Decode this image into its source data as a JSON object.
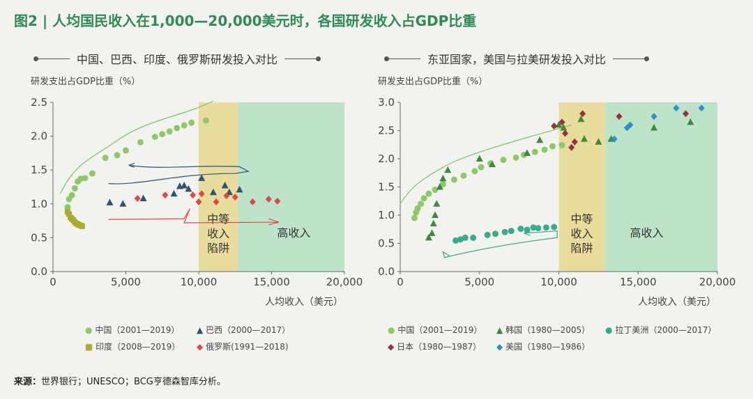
{
  "title": "图2 | 人均国民收入在1,000—20,000美元时，各国研发收入占GDP比重",
  "source": {
    "label": "来源：",
    "text": "世界银行；UNESCO；BCG亨德森智库分析。"
  },
  "colors": {
    "china": "#8cc96a",
    "brazil": "#2c5574",
    "india": "#a9ac2c",
    "russia": "#e04848",
    "korea": "#3e8a3a",
    "japan": "#9b2d47",
    "usa": "#2f8fcc",
    "latam": "#3aaa8c",
    "trap": "#e8dd9c",
    "high": "#bde3c9",
    "title": "#2e8b57"
  },
  "chart_data": [
    {
      "type": "scatter",
      "title": "中国、巴西、印度、俄罗斯研发投入对比",
      "ylabel": "研发支出占GDP比重（%）",
      "xlabel": "人均收入（美元）",
      "xlim": [
        0,
        20000
      ],
      "ylim": [
        0,
        2.5
      ],
      "xticks": [
        "0",
        "5,000",
        "10,000",
        "15,000",
        "20,000"
      ],
      "yticks": [
        "0.0",
        "0.5",
        "1.0",
        "1.5",
        "2.0",
        "2.5"
      ],
      "regions": [
        {
          "name": "trap",
          "x0": 10000,
          "x1": 12700,
          "label": [
            "中等",
            "收入",
            "陷阱"
          ]
        },
        {
          "name": "high",
          "x0": 12700,
          "x1": 20000,
          "label": [
            "高收入"
          ]
        }
      ],
      "series": [
        {
          "name": "中国（2001—2019）",
          "marker": "circle",
          "color_key": "china",
          "points": [
            [
              1000,
              0.95
            ],
            [
              1100,
              1.07
            ],
            [
              1300,
              1.13
            ],
            [
              1500,
              1.23
            ],
            [
              1700,
              1.33
            ],
            [
              1900,
              1.37
            ],
            [
              2200,
              1.38
            ],
            [
              2700,
              1.45
            ],
            [
              3600,
              1.68
            ],
            [
              4400,
              1.72
            ],
            [
              5000,
              1.79
            ],
            [
              6000,
              1.91
            ],
            [
              7000,
              1.99
            ],
            [
              7500,
              2.03
            ],
            [
              8000,
              2.07
            ],
            [
              8500,
              2.12
            ],
            [
              9000,
              2.16
            ],
            [
              9500,
              2.2
            ],
            [
              10500,
              2.23
            ]
          ]
        },
        {
          "name": "巴西（2000—2017）",
          "marker": "triangle",
          "color_key": "brazil",
          "points": [
            [
              3900,
              1.02
            ],
            [
              4800,
              1.0
            ],
            [
              6200,
              1.08
            ],
            [
              8300,
              1.15
            ],
            [
              8700,
              1.26
            ],
            [
              9000,
              1.27
            ],
            [
              9300,
              1.22
            ],
            [
              10200,
              1.38
            ],
            [
              11000,
              1.17
            ],
            [
              11800,
              1.27
            ],
            [
              12100,
              1.17
            ],
            [
              12800,
              1.21
            ]
          ]
        },
        {
          "name": "印度（2008—2019）",
          "marker": "square",
          "color_key": "india",
          "points": [
            [
              1000,
              0.88
            ],
            [
              1100,
              0.85
            ],
            [
              1200,
              0.8
            ],
            [
              1300,
              0.78
            ],
            [
              1400,
              0.76
            ],
            [
              1500,
              0.73
            ],
            [
              1600,
              0.71
            ],
            [
              1700,
              0.7
            ],
            [
              1800,
              0.69
            ],
            [
              1900,
              0.68
            ],
            [
              2000,
              0.67
            ]
          ]
        },
        {
          "name": "俄罗斯(1991—2018)",
          "marker": "diamond",
          "color_key": "russia",
          "points": [
            [
              5800,
              1.08
            ],
            [
              7700,
              1.13
            ],
            [
              9600,
              1.13
            ],
            [
              10200,
              1.15
            ],
            [
              10000,
              1.03
            ],
            [
              11200,
              1.03
            ],
            [
              11900,
              1.12
            ],
            [
              12500,
              1.1
            ],
            [
              13700,
              1.03
            ],
            [
              14800,
              1.07
            ],
            [
              15400,
              1.04
            ]
          ]
        }
      ],
      "legend": [
        "中国（2001—2019）",
        "巴西（2000—2017）",
        "印度（2008—2019）",
        "俄罗斯(1991—2018)"
      ]
    },
    {
      "type": "scatter",
      "title": "东亚国家，美国与拉美研发投入对比",
      "ylabel": "研发支出占GDP比重（%）",
      "xlabel": "人均收入（美元）",
      "xlim": [
        0,
        20000
      ],
      "ylim": [
        0,
        3.0
      ],
      "xticks": [
        "0",
        "5,000",
        "10,000",
        "15,000",
        "20,000"
      ],
      "yticks": [
        "0.0",
        "0.5",
        "1.0",
        "1.5",
        "2.0",
        "2.5",
        "3.0"
      ],
      "regions": [
        {
          "name": "trap",
          "x0": 10000,
          "x1": 12900,
          "label": [
            "中等",
            "收入",
            "陷阱"
          ]
        },
        {
          "name": "high",
          "x0": 12900,
          "x1": 20000,
          "label": [
            "高收入"
          ]
        }
      ],
      "series": [
        {
          "name": "中国（2001—2019）",
          "marker": "circle",
          "color_key": "china",
          "points": [
            [
              900,
              0.95
            ],
            [
              1000,
              1.05
            ],
            [
              1100,
              1.12
            ],
            [
              1300,
              1.2
            ],
            [
              1500,
              1.3
            ],
            [
              1800,
              1.38
            ],
            [
              2200,
              1.45
            ],
            [
              2700,
              1.55
            ],
            [
              3400,
              1.63
            ],
            [
              4000,
              1.7
            ],
            [
              4700,
              1.78
            ],
            [
              5100,
              1.85
            ],
            [
              5700,
              1.92
            ],
            [
              6500,
              1.98
            ],
            [
              7300,
              2.02
            ],
            [
              7800,
              2.07
            ],
            [
              8500,
              2.12
            ],
            [
              9100,
              2.16
            ],
            [
              9600,
              2.22
            ],
            [
              10200,
              2.24
            ]
          ]
        },
        {
          "name": "韩国（1980—2005）",
          "marker": "triangle",
          "color_key": "korea",
          "points": [
            [
              1800,
              0.6
            ],
            [
              2000,
              0.68
            ],
            [
              2100,
              0.85
            ],
            [
              2200,
              1.0
            ],
            [
              2300,
              1.2
            ],
            [
              2500,
              1.5
            ],
            [
              2700,
              1.65
            ],
            [
              3000,
              1.8
            ],
            [
              5000,
              2.0
            ],
            [
              5800,
              1.9
            ],
            [
              8000,
              2.1
            ],
            [
              8800,
              2.33
            ],
            [
              10000,
              2.6
            ],
            [
              10300,
              2.55
            ],
            [
              11400,
              2.7
            ],
            [
              11600,
              2.35
            ],
            [
              12500,
              2.3
            ],
            [
              13300,
              2.35
            ],
            [
              16000,
              2.55
            ],
            [
              18300,
              2.65
            ]
          ]
        },
        {
          "name": "拉丁美洲（2000—2017）",
          "marker": "circle",
          "color_key": "latam",
          "points": [
            [
              3500,
              0.55
            ],
            [
              3800,
              0.57
            ],
            [
              4100,
              0.6
            ],
            [
              4600,
              0.6
            ],
            [
              5500,
              0.65
            ],
            [
              6000,
              0.67
            ],
            [
              6600,
              0.7
            ],
            [
              7000,
              0.72
            ],
            [
              7600,
              0.76
            ],
            [
              8000,
              0.74
            ],
            [
              8400,
              0.78
            ],
            [
              8700,
              0.77
            ],
            [
              9200,
              0.78
            ],
            [
              9700,
              0.79
            ]
          ]
        },
        {
          "name": "日本（1980—1987）",
          "marker": "diamond",
          "color_key": "japan",
          "points": [
            [
              9700,
              2.58
            ],
            [
              10200,
              2.65
            ],
            [
              10400,
              2.45
            ],
            [
              10800,
              2.2
            ],
            [
              11000,
              2.3
            ],
            [
              11500,
              2.8
            ],
            [
              13800,
              2.75
            ],
            [
              18000,
              2.8
            ]
          ]
        },
        {
          "name": "美国（1980—1986）",
          "marker": "diamond",
          "color_key": "usa",
          "points": [
            [
              13500,
              2.35
            ],
            [
              14300,
              2.55
            ],
            [
              14500,
              2.6
            ],
            [
              16000,
              2.75
            ],
            [
              17400,
              2.9
            ],
            [
              19000,
              2.9
            ]
          ]
        }
      ],
      "legend": [
        "中国（2001—2019）",
        "韩国（1980—2005）",
        "拉丁美洲（2000—2017）",
        "日本（1980—1987）",
        "美国（1980—1986）"
      ]
    }
  ]
}
